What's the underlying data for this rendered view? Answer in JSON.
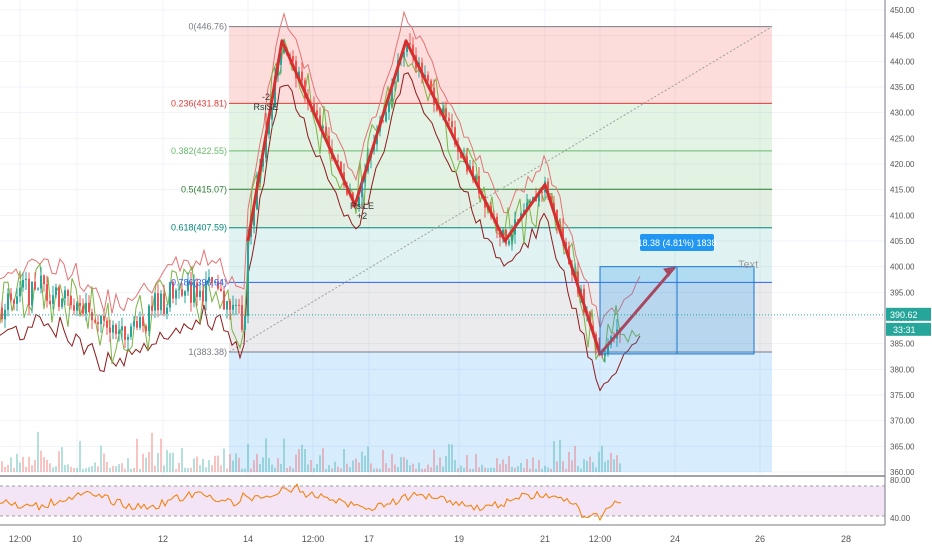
{
  "chart_data": {
    "type": "line",
    "instrument_price_axis": {
      "ticks": [
        "450.00",
        "445.00",
        "440.00",
        "435.00",
        "430.00",
        "425.00",
        "420.00",
        "415.00",
        "410.00",
        "405.00",
        "400.00",
        "395.00",
        "390.00",
        "385.00",
        "380.00",
        "375.00",
        "370.00",
        "365.00",
        "360.00"
      ],
      "current_price": "390.62",
      "countdown": "33:31"
    },
    "rsi_axis": {
      "ticks": [
        "80.00",
        "40.00"
      ]
    },
    "x_axis": {
      "ticks": [
        "12:00",
        "10",
        "12",
        "14",
        "12:00",
        "17",
        "19",
        "21",
        "12:00",
        "24",
        "26",
        "28"
      ]
    },
    "fib_levels": [
      {
        "label": "0(446.76)",
        "value": 446.76,
        "color": "#787b86"
      },
      {
        "label": "0.236(431.81)",
        "value": 431.81,
        "color": "#e53935"
      },
      {
        "label": "0.382(422.55)",
        "value": 422.55,
        "color": "#66bb6a"
      },
      {
        "label": "0.5(415.07)",
        "value": 415.07,
        "color": "#2e7d32"
      },
      {
        "label": "0.618(407.59)",
        "value": 407.59,
        "color": "#00897b"
      },
      {
        "label": "0.786(396.94)",
        "value": 396.94,
        "color": "#2962ff"
      },
      {
        "label": "1(383.38)",
        "value": 383.38,
        "color": "#787b86"
      }
    ],
    "zigzag_pattern": [
      {
        "x": "14",
        "y": 405
      },
      {
        "x": "15",
        "y": 444
      },
      {
        "x": "16.6",
        "y": 412
      },
      {
        "x": "17.8",
        "y": 444
      },
      {
        "x": "19.8",
        "y": 405
      },
      {
        "x": "21",
        "y": 416
      },
      {
        "x": "22",
        "y": 383
      },
      {
        "x": "24",
        "y": 400
      }
    ],
    "projection_label": "18.38 (4.81%) 1838",
    "signals": [
      {
        "label": "RsiSE",
        "sub": "-2"
      },
      {
        "label": "RsiLE",
        "sub": "+2"
      }
    ],
    "annotation_text": "Text",
    "colors": {
      "pattern": "#d32f2f",
      "up_candle": "#26a69a",
      "down_candle": "#ef5350",
      "rsi": "#f57c00",
      "label_box": "#2196f3"
    }
  }
}
